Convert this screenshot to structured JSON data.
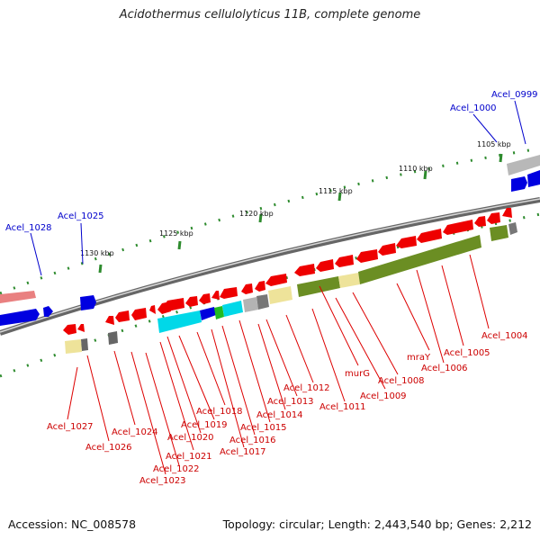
{
  "title": "Acidothermus cellulolyticus 11B, complete genome",
  "footer": {
    "accession": "Accession: NC_008578",
    "summary": "Topology: circular; Length: 2,443,540 bp; Genes: 2,212"
  },
  "colors": {
    "forward_gene": "#0000dd",
    "reverse_gene": "#ee0000",
    "label_forward": "#0000cc",
    "label_reverse": "#cc0000",
    "backbone": "#777777",
    "tick": "#228b22"
  },
  "scale_ticks": [
    {
      "label": "1105 kbp"
    },
    {
      "label": "1110 kbp"
    },
    {
      "label": "1115 kbp"
    },
    {
      "label": "1120 kbp"
    },
    {
      "label": "1125 kbp"
    },
    {
      "label": "1130 kbp"
    }
  ],
  "forward_labels": [
    "Acel_0999",
    "Acel_1000",
    "Acel_1025",
    "Acel_1028"
  ],
  "reverse_labels": [
    "Acel_1004",
    "Acel_1005",
    "mraY",
    "Acel_1006",
    "Acel_1008",
    "Acel_1009",
    "murG",
    "Acel_1011",
    "Acel_1012",
    "Acel_1013",
    "Acel_1014",
    "Acel_1015",
    "Acel_1016",
    "Acel_1017",
    "Acel_1018",
    "Acel_1019",
    "Acel_1020",
    "Acel_1021",
    "Acel_1022",
    "Acel_1023",
    "Acel_1024",
    "Acel_1026",
    "Acel_1027"
  ]
}
